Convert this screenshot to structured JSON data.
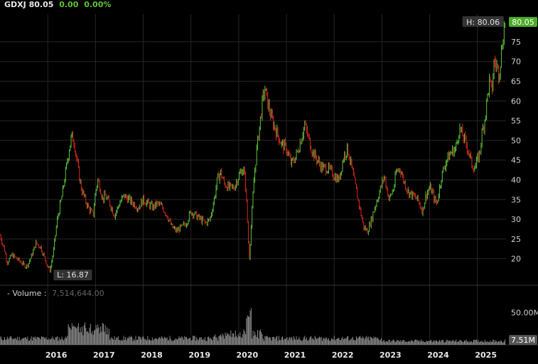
{
  "header": {
    "symbol": "GDXJ",
    "price": "80.05",
    "change": "0.00",
    "change_pct": "0.00%"
  },
  "chart_data": {
    "type": "candlestick",
    "price_axis": {
      "ylim": [
        14,
        82
      ],
      "ticks": [
        20,
        25,
        30,
        35,
        40,
        45,
        50,
        55,
        60,
        65,
        70,
        75
      ]
    },
    "x_ticks": [
      "2016",
      "2017",
      "2018",
      "2019",
      "2020",
      "2021",
      "2022",
      "2023",
      "2024",
      "2025"
    ],
    "x_range": [
      2015.0,
      2025.6
    ],
    "price_series": {
      "name": "GDXJ",
      "points": [
        [
          2015.0,
          26
        ],
        [
          2015.05,
          24
        ],
        [
          2015.1,
          22
        ],
        [
          2015.15,
          19
        ],
        [
          2015.25,
          21
        ],
        [
          2015.35,
          20
        ],
        [
          2015.45,
          19
        ],
        [
          2015.55,
          18
        ],
        [
          2015.6,
          19
        ],
        [
          2015.7,
          22
        ],
        [
          2015.75,
          24
        ],
        [
          2015.85,
          23
        ],
        [
          2016.0,
          18
        ],
        [
          2016.05,
          17
        ],
        [
          2016.12,
          22
        ],
        [
          2016.2,
          30
        ],
        [
          2016.3,
          36
        ],
        [
          2016.4,
          44
        ],
        [
          2016.45,
          48
        ],
        [
          2016.5,
          51
        ],
        [
          2016.55,
          50
        ],
        [
          2016.62,
          44
        ],
        [
          2016.7,
          38
        ],
        [
          2016.78,
          35
        ],
        [
          2016.85,
          33
        ],
        [
          2016.95,
          31
        ],
        [
          2017.0,
          37
        ],
        [
          2017.05,
          40
        ],
        [
          2017.1,
          38
        ],
        [
          2017.15,
          35
        ],
        [
          2017.2,
          36
        ],
        [
          2017.3,
          34
        ],
        [
          2017.4,
          31
        ],
        [
          2017.5,
          34
        ],
        [
          2017.6,
          36
        ],
        [
          2017.7,
          35
        ],
        [
          2017.8,
          34
        ],
        [
          2017.9,
          33
        ],
        [
          2018.0,
          35
        ],
        [
          2018.1,
          34
        ],
        [
          2018.2,
          33
        ],
        [
          2018.3,
          34
        ],
        [
          2018.4,
          33
        ],
        [
          2018.5,
          31
        ],
        [
          2018.6,
          28
        ],
        [
          2018.7,
          27
        ],
        [
          2018.8,
          28
        ],
        [
          2018.9,
          29
        ],
        [
          2019.0,
          32
        ],
        [
          2019.1,
          31
        ],
        [
          2019.2,
          30
        ],
        [
          2019.3,
          29
        ],
        [
          2019.4,
          30
        ],
        [
          2019.5,
          36
        ],
        [
          2019.55,
          40
        ],
        [
          2019.62,
          42
        ],
        [
          2019.7,
          39
        ],
        [
          2019.8,
          38
        ],
        [
          2019.9,
          38
        ],
        [
          2020.0,
          41
        ],
        [
          2020.1,
          43
        ],
        [
          2020.15,
          38
        ],
        [
          2020.2,
          25
        ],
        [
          2020.22,
          20
        ],
        [
          2020.27,
          30
        ],
        [
          2020.32,
          40
        ],
        [
          2020.38,
          48
        ],
        [
          2020.45,
          55
        ],
        [
          2020.5,
          60
        ],
        [
          2020.55,
          63
        ],
        [
          2020.6,
          60
        ],
        [
          2020.7,
          55
        ],
        [
          2020.8,
          52
        ],
        [
          2020.9,
          49
        ],
        [
          2021.0,
          48
        ],
        [
          2021.1,
          44
        ],
        [
          2021.2,
          46
        ],
        [
          2021.3,
          50
        ],
        [
          2021.38,
          54
        ],
        [
          2021.45,
          51
        ],
        [
          2021.55,
          47
        ],
        [
          2021.65,
          45
        ],
        [
          2021.75,
          43
        ],
        [
          2021.85,
          43
        ],
        [
          2021.95,
          42
        ],
        [
          2022.0,
          41
        ],
        [
          2022.1,
          40
        ],
        [
          2022.2,
          46
        ],
        [
          2022.28,
          48
        ],
        [
          2022.35,
          44
        ],
        [
          2022.45,
          38
        ],
        [
          2022.55,
          32
        ],
        [
          2022.62,
          28
        ],
        [
          2022.7,
          27
        ],
        [
          2022.78,
          30
        ],
        [
          2022.85,
          33
        ],
        [
          2022.95,
          37
        ],
        [
          2023.05,
          41
        ],
        [
          2023.1,
          38
        ],
        [
          2023.15,
          35
        ],
        [
          2023.25,
          38
        ],
        [
          2023.3,
          42
        ],
        [
          2023.38,
          43
        ],
        [
          2023.45,
          40
        ],
        [
          2023.55,
          37
        ],
        [
          2023.65,
          36
        ],
        [
          2023.75,
          35
        ],
        [
          2023.85,
          32
        ],
        [
          2023.92,
          36
        ],
        [
          2024.0,
          38
        ],
        [
          2024.05,
          37
        ],
        [
          2024.1,
          35
        ],
        [
          2024.15,
          34
        ],
        [
          2024.25,
          41
        ],
        [
          2024.35,
          45
        ],
        [
          2024.45,
          47
        ],
        [
          2024.55,
          48
        ],
        [
          2024.62,
          53
        ],
        [
          2024.7,
          51
        ],
        [
          2024.8,
          48
        ],
        [
          2024.88,
          44
        ],
        [
          2024.95,
          43
        ],
        [
          2025.05,
          47
        ],
        [
          2025.1,
          52
        ],
        [
          2025.15,
          55
        ],
        [
          2025.2,
          60
        ],
        [
          2025.25,
          65
        ],
        [
          2025.3,
          62
        ],
        [
          2025.35,
          70
        ],
        [
          2025.4,
          69
        ],
        [
          2025.45,
          67
        ],
        [
          2025.5,
          72
        ],
        [
          2025.55,
          78
        ],
        [
          2025.58,
          80.05
        ]
      ]
    },
    "volume_series": {
      "name": "Volume",
      "ylim": [
        0,
        70000000
      ],
      "ticks": [
        "50.00M"
      ]
    },
    "annotations": {
      "high": "H: 80.06",
      "low": "L: 16.87",
      "last": "80.05",
      "last_volume": "7.51M"
    }
  },
  "volume_legend": {
    "label": "Volume",
    "value": "7,514,644.00"
  },
  "colors": {
    "up": "#5fc43c",
    "down": "#d8281f",
    "volume": "#8c8c8c",
    "grid": "#262626",
    "last_price_bg": "#4eab2a"
  }
}
